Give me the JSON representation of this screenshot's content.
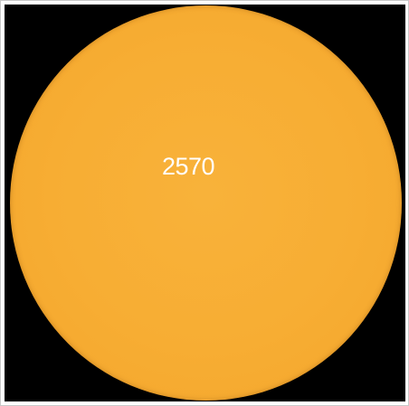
{
  "image": {
    "region_label": "2570",
    "colors": {
      "background": "#000000",
      "disk": "#f7ad33",
      "label_text": "#ffffff",
      "frame_border": "#c8c8c8"
    }
  }
}
